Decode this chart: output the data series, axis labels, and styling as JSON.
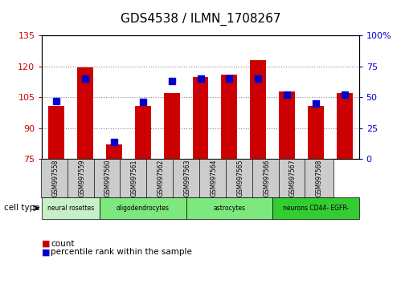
{
  "title": "GDS4538 / ILMN_1708267",
  "samples": [
    "GSM997558",
    "GSM997559",
    "GSM997560",
    "GSM997561",
    "GSM997562",
    "GSM997563",
    "GSM997564",
    "GSM997565",
    "GSM997566",
    "GSM997567",
    "GSM997568"
  ],
  "counts": [
    101,
    119.5,
    82,
    101,
    107,
    115,
    116,
    123,
    108,
    101,
    107
  ],
  "percentile_ranks": [
    47,
    65,
    14,
    46,
    63,
    65,
    65,
    65,
    52,
    45,
    52
  ],
  "ylim_left": [
    75,
    135
  ],
  "ylim_right": [
    0,
    100
  ],
  "yticks_left": [
    75,
    90,
    105,
    120,
    135
  ],
  "yticks_right": [
    0,
    25,
    50,
    75,
    100
  ],
  "cell_type_spans": [
    {
      "label": "neural rosettes",
      "color": "#c8f0c8",
      "start": 0,
      "end": 2
    },
    {
      "label": "oligodendrocytes",
      "color": "#7de87d",
      "start": 2,
      "end": 5
    },
    {
      "label": "astrocytes",
      "color": "#7de87d",
      "start": 5,
      "end": 8
    },
    {
      "label": "neurons CD44- EGFR-",
      "color": "#33cc33",
      "start": 8,
      "end": 11
    }
  ],
  "bar_color": "#cc0000",
  "dot_color": "#0000cc",
  "bar_bottom": 75,
  "grid_color": "#888888",
  "bg_color": "#ffffff",
  "label_bg": "#cccccc",
  "cell_type_label": "cell type",
  "legend_count": "count",
  "legend_percentile": "percentile rank within the sample"
}
